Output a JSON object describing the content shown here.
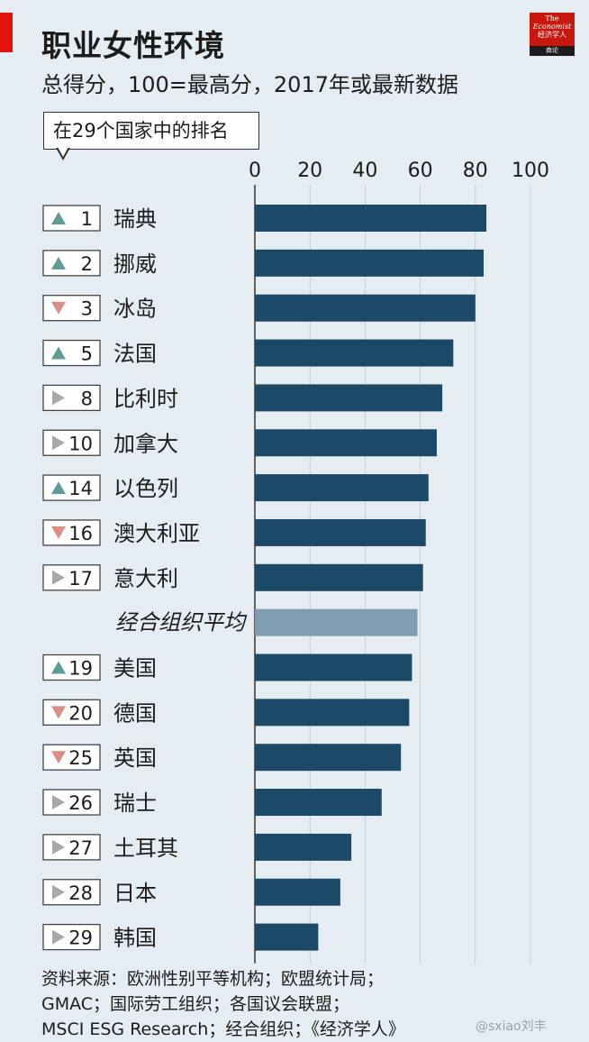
{
  "header": {
    "title": "职业女性环境",
    "subtitle": "总得分，100=最高分，2017年或最新数据",
    "callout": "在29个国家中的排名"
  },
  "logo": {
    "line1": "The",
    "line2": "Economist",
    "line3": "经济学人",
    "line4": "商论"
  },
  "colors": {
    "bar": "#1c4966",
    "average_bar": "#7d9db2",
    "up": "#5e9c94",
    "down": "#d98f86",
    "same": "#a8a8a8"
  },
  "chart_data": {
    "type": "bar",
    "orientation": "horizontal",
    "xlim": [
      0,
      100
    ],
    "x_ticks": [
      "0",
      "20",
      "40",
      "60",
      "80",
      "100"
    ],
    "grid": true,
    "categories": [
      "瑞典",
      "挪威",
      "冰岛",
      "法国",
      "比利时",
      "加拿大",
      "以色列",
      "澳大利亚",
      "意大利",
      "经合组织平均",
      "美国",
      "德国",
      "英国",
      "瑞士",
      "土耳其",
      "日本",
      "韩国"
    ],
    "ranks": [
      "1",
      "2",
      "3",
      "5",
      "8",
      "10",
      "14",
      "16",
      "17",
      "",
      "19",
      "20",
      "25",
      "26",
      "27",
      "28",
      "29"
    ],
    "trend": [
      "up",
      "up",
      "down",
      "up",
      "same",
      "same",
      "up",
      "down",
      "same",
      "",
      "up",
      "down",
      "down",
      "same",
      "same",
      "same",
      "same"
    ],
    "values": [
      84,
      83,
      80,
      72,
      68,
      66,
      63,
      62,
      61,
      59,
      57,
      56,
      53,
      46,
      35,
      31,
      23
    ],
    "highlight": "经合组织平均"
  },
  "footer": {
    "source_lines": [
      "资料来源：欧洲性别平等机构；欧盟统计局；",
      "GMAC；国际劳工组织；各国议会联盟；",
      "MSCI ESG Research；经合组织；《经济学人》"
    ],
    "watermark": "@sxiao刘丰"
  }
}
